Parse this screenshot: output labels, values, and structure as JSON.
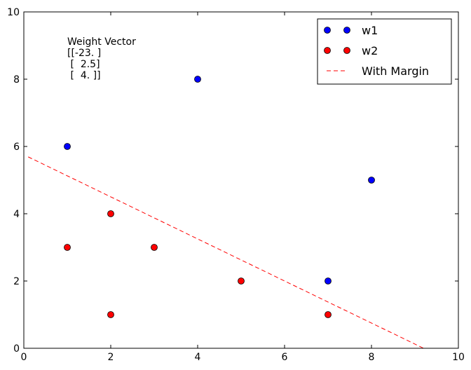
{
  "chart_data": {
    "type": "scatter",
    "title": "",
    "xlabel": "",
    "ylabel": "",
    "xlim": [
      0,
      10
    ],
    "ylim": [
      0,
      10
    ],
    "xticks": [
      "0",
      "2",
      "4",
      "6",
      "8",
      "10"
    ],
    "yticks": [
      "0",
      "2",
      "4",
      "6",
      "8",
      "10"
    ],
    "grid": false,
    "legend_position": "top-right",
    "series": [
      {
        "name": "w1",
        "kind": "points",
        "color": "#0000ff",
        "points": [
          [
            1,
            6
          ],
          [
            4,
            8
          ],
          [
            8,
            5
          ],
          [
            7,
            2
          ]
        ]
      },
      {
        "name": "w2",
        "kind": "points",
        "color": "#ff0000",
        "points": [
          [
            2,
            4
          ],
          [
            1,
            3
          ],
          [
            3,
            3
          ],
          [
            5,
            2
          ],
          [
            2,
            1
          ],
          [
            7,
            1
          ]
        ]
      },
      {
        "name": "With Margin",
        "kind": "dashed-line",
        "color": "#ff0000",
        "points": [
          [
            0.1,
            5.69
          ],
          [
            9.2,
            0.0
          ]
        ]
      }
    ],
    "annotation": {
      "lines": [
        "Weight Vector",
        "[[-23. ]",
        " [  2.5]",
        " [  4. ]]"
      ],
      "x": 1.0,
      "y": 9.0
    }
  }
}
